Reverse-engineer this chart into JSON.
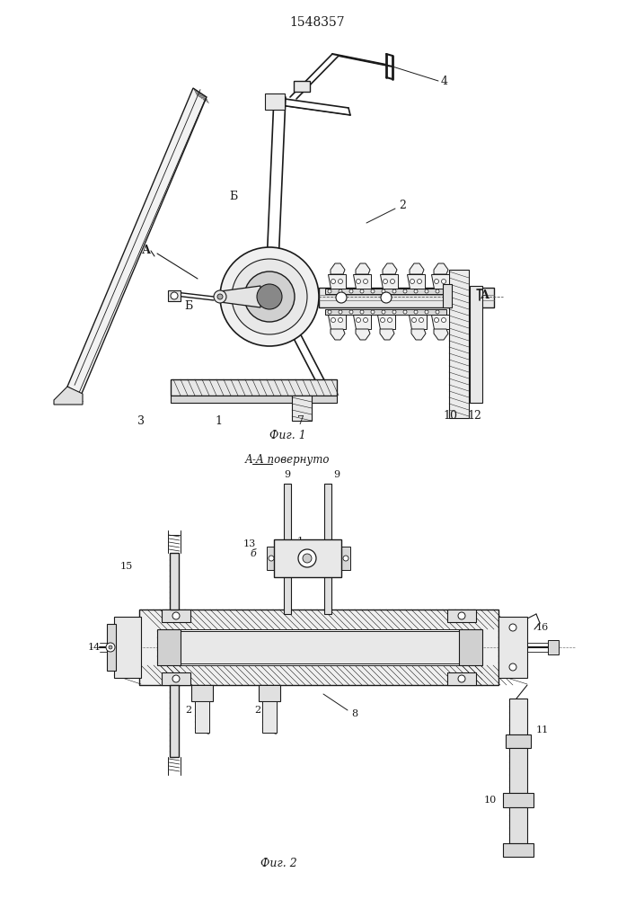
{
  "patent_number": "1548357",
  "fig1_caption": "Фиг. 1",
  "fig2_caption": "Фиг. 2",
  "section_label": "А-А повернуто",
  "bg_color": "#ffffff",
  "line_color": "#1a1a1a"
}
